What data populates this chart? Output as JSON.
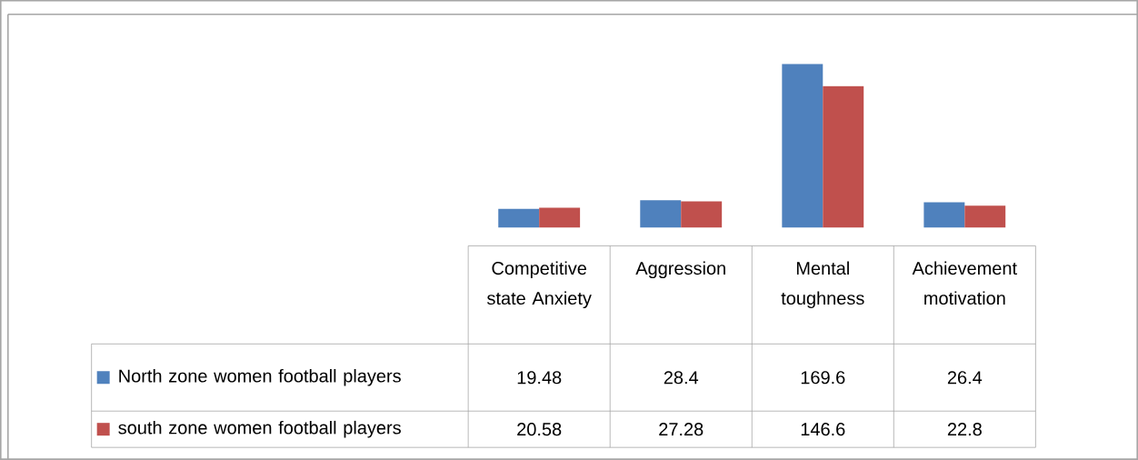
{
  "chart_data": {
    "type": "bar",
    "categories": [
      "Competitive state Anxiety",
      "Aggression",
      "Mental toughness",
      "Achievement motivation"
    ],
    "series": [
      {
        "name": "North zone women football players",
        "color": "#4f81bd",
        "values": [
          19.48,
          28.4,
          169.6,
          26.4
        ]
      },
      {
        "name": "south zone women football players",
        "color": "#c0504d",
        "values": [
          20.58,
          27.28,
          146.6,
          22.8
        ]
      }
    ],
    "data_labels": true,
    "legend": "bottom left"
  }
}
